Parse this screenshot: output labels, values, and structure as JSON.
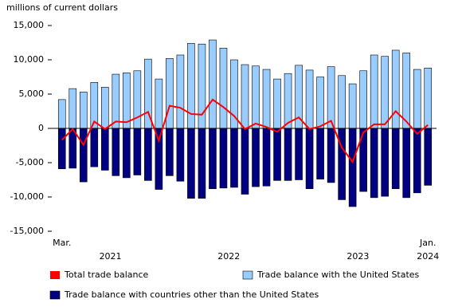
{
  "chart_data": {
    "type": "bar_line",
    "y_axis_label": "millions of current dollars",
    "categories": [
      "Mar.",
      null,
      null,
      null,
      null,
      null,
      null,
      null,
      null,
      null,
      null,
      null,
      null,
      null,
      null,
      null,
      null,
      null,
      null,
      null,
      null,
      null,
      null,
      null,
      null,
      null,
      null,
      null,
      null,
      null,
      null,
      null,
      null,
      null,
      "Jan."
    ],
    "year_labels": [
      {
        "label": "2021",
        "first": 0,
        "last": 9
      },
      {
        "label": "2022",
        "first": 10,
        "last": 21
      },
      {
        "label": "2023",
        "first": 22,
        "last": 33
      },
      {
        "label": "2024",
        "first": 34,
        "last": 34
      }
    ],
    "series": [
      {
        "name": "Total trade balance",
        "kind": "line",
        "color": "#ff0000",
        "values": [
          -1700,
          -100,
          -2400,
          1000,
          -100,
          1000,
          900,
          1600,
          2400,
          -1800,
          3300,
          3000,
          2100,
          2000,
          4200,
          3100,
          1800,
          -100,
          700,
          200,
          -500,
          800,
          1600,
          -100,
          300,
          1100,
          -2800,
          -4900,
          -600,
          600,
          600,
          2500,
          1000,
          -800,
          500
        ]
      },
      {
        "name": "Trade balance with the United States",
        "kind": "bar",
        "color": "#99ccff",
        "values": [
          4200,
          5800,
          5300,
          6700,
          6000,
          7900,
          8100,
          8400,
          10100,
          7200,
          10200,
          10700,
          12400,
          12300,
          12900,
          11700,
          10000,
          9300,
          9100,
          8600,
          7200,
          8000,
          9200,
          8500,
          7500,
          9000,
          7700,
          6500,
          8400,
          10700,
          10500,
          11400,
          11000,
          8600,
          8800
        ]
      },
      {
        "name": "Trade balance with countries other than the United States",
        "kind": "bar",
        "color": "#000080",
        "values": [
          -5900,
          -5800,
          -7800,
          -5600,
          -6100,
          -6900,
          -7200,
          -6800,
          -7600,
          -8900,
          -6900,
          -7700,
          -10200,
          -10200,
          -8800,
          -8700,
          -8600,
          -9600,
          -8500,
          -8400,
          -7600,
          -7600,
          -7500,
          -8800,
          -7400,
          -7900,
          -10400,
          -11400,
          -9200,
          -10100,
          -9900,
          -8800,
          -10100,
          -9400,
          -8300
        ]
      }
    ],
    "ylim": [
      -15000,
      15000
    ],
    "yticks": [
      {
        "value": -15000,
        "label": "-15,000"
      },
      {
        "value": -10000,
        "label": "-10,000"
      },
      {
        "value": -5000,
        "label": "-5,000"
      },
      0,
      {
        "value": 5000,
        "label": "5,000"
      },
      {
        "value": 10000,
        "label": "10,000"
      },
      {
        "value": 15000,
        "label": "15,000"
      }
    ],
    "grid": false
  }
}
